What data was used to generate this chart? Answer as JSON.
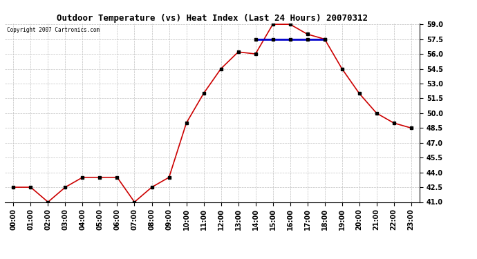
{
  "title": "Outdoor Temperature (vs) Heat Index (Last 24 Hours) 20070312",
  "copyright": "Copyright 2007 Cartronics.com",
  "hours": [
    "00:00",
    "01:00",
    "02:00",
    "03:00",
    "04:00",
    "05:00",
    "06:00",
    "07:00",
    "08:00",
    "09:00",
    "10:00",
    "11:00",
    "12:00",
    "13:00",
    "14:00",
    "15:00",
    "16:00",
    "17:00",
    "18:00",
    "19:00",
    "20:00",
    "21:00",
    "22:00",
    "23:00"
  ],
  "temp_values": [
    42.5,
    42.5,
    41.0,
    42.5,
    43.5,
    43.5,
    43.5,
    41.0,
    42.5,
    43.5,
    49.0,
    52.0,
    54.5,
    56.2,
    56.0,
    59.0,
    59.0,
    58.0,
    57.5,
    54.5,
    52.0,
    50.0,
    49.0,
    48.5
  ],
  "heat_values": [
    null,
    null,
    null,
    null,
    null,
    null,
    null,
    null,
    null,
    null,
    null,
    null,
    null,
    null,
    57.5,
    57.5,
    57.5,
    57.5,
    57.5,
    null,
    null,
    null,
    null,
    null
  ],
  "temp_color": "#cc0000",
  "heat_color": "#0000cc",
  "background_color": "#ffffff",
  "grid_color": "#c0c0c0",
  "ylim_min": 41.0,
  "ylim_max": 59.0,
  "ytick_interval": 1.5,
  "fig_width": 6.9,
  "fig_height": 3.75,
  "dpi": 100
}
